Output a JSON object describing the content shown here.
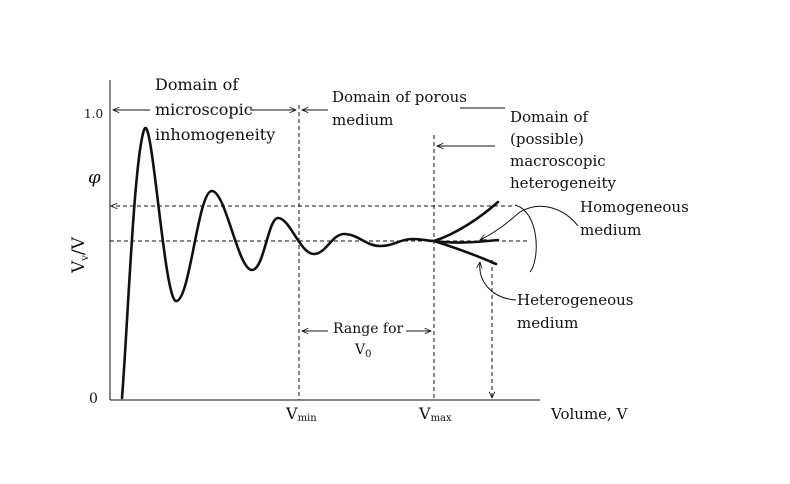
{
  "figure": {
    "y_axis_label": "Vv/V",
    "y_axis_label_main": "V",
    "y_axis_label_sub": "v",
    "y_axis_label_tail": "/V",
    "y_tick_top": "1.0",
    "y_tick_phi": "φ",
    "y_tick_zero": "0",
    "x_axis_label": "Volume, V",
    "x_tick_vmin_main": "V",
    "x_tick_vmin_sub": "min",
    "x_tick_vmax_main": "V",
    "x_tick_vmax_sub": "max",
    "domain_micro_line1": "Domain of",
    "domain_micro_line2": "microscopic",
    "domain_micro_line3": "inhomogeneity",
    "domain_porous_line1": "Domain of porous",
    "domain_porous_line2": "medium",
    "domain_macro_line1": "Domain of",
    "domain_macro_line2": "(possible)",
    "domain_macro_line3": "macroscopic",
    "domain_macro_line4": "heterogeneity",
    "homogeneous_line1": "Homogeneous",
    "homogeneous_line2": "medium",
    "heterogeneous_line1": "Heterogeneous",
    "heterogeneous_line2": "medium",
    "range_line1": "Range for",
    "range_main": "V",
    "range_sub": "0"
  }
}
